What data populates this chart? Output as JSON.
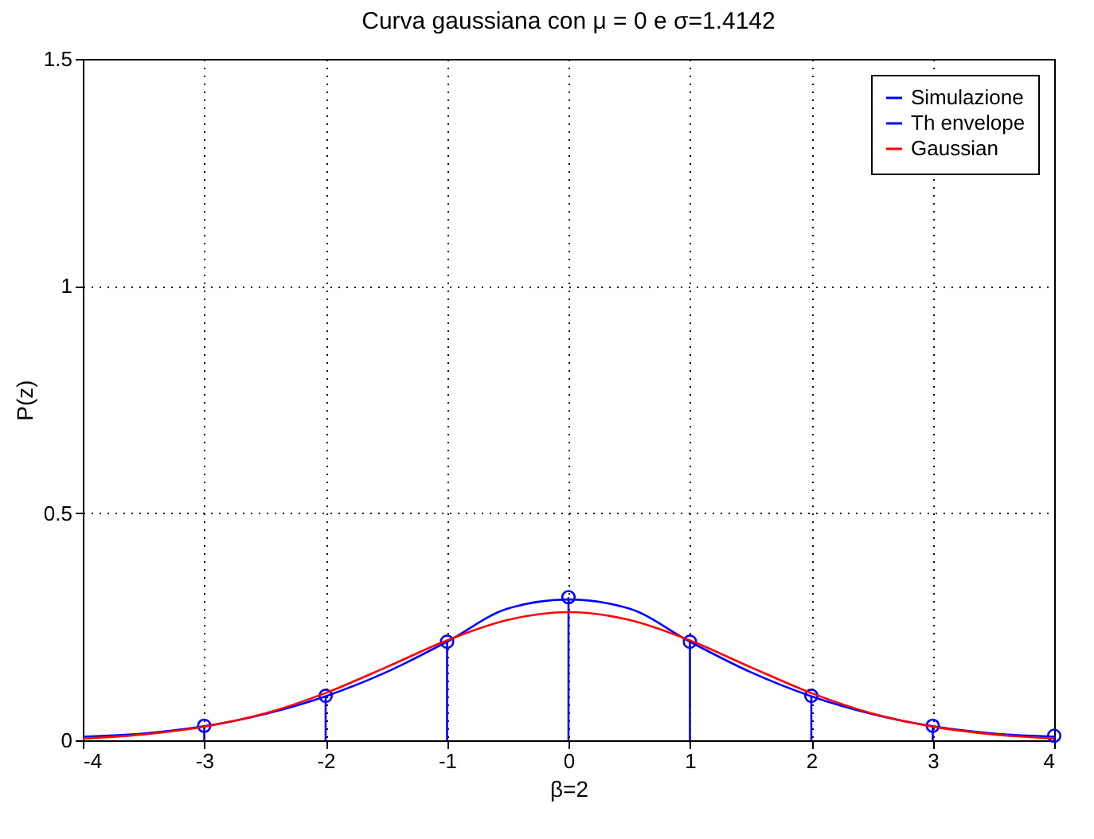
{
  "chart_data": {
    "type": "line",
    "title": "Curva gaussiana con μ = 0 e σ=1.4142",
    "xlabel": "β=2",
    "ylabel": "P(z)",
    "xlim": [
      -4,
      4
    ],
    "xticks": [
      -4,
      -3,
      -2,
      -1,
      0,
      1,
      2,
      3,
      4
    ],
    "ylim": [
      0,
      1.5
    ],
    "yticks": [
      0,
      0.5,
      1,
      1.5
    ],
    "grid": true,
    "legend": "top right",
    "series": [
      {
        "name": "Simulazione",
        "type": "lollipop",
        "marker": "circle",
        "color": "#0000ff",
        "x": [
          -3,
          -2,
          -1,
          0,
          1,
          2,
          3,
          4
        ],
        "values": [
          0.032,
          0.098,
          0.217,
          0.315,
          0.217,
          0.098,
          0.032,
          0.01
        ]
      },
      {
        "name": "Th envelope",
        "type": "line",
        "color": "#0000ff",
        "x": [
          -4,
          -3.5,
          -3,
          -2.5,
          -2,
          -1.5,
          -1,
          -0.5,
          0,
          0.5,
          1,
          1.5,
          2,
          2.5,
          3,
          3.5,
          4
        ],
        "values": [
          0.008,
          0.015,
          0.031,
          0.058,
          0.097,
          0.15,
          0.217,
          0.29,
          0.31,
          0.29,
          0.217,
          0.15,
          0.097,
          0.058,
          0.031,
          0.015,
          0.008
        ]
      },
      {
        "name": "Gaussian",
        "type": "line",
        "color": "#ff0000",
        "x": [
          -4,
          -3.5,
          -3,
          -2.5,
          -2,
          -1.5,
          -1,
          -0.5,
          0,
          0.5,
          1,
          1.5,
          2,
          2.5,
          3,
          3.5,
          4
        ],
        "values": [
          0.004,
          0.013,
          0.03,
          0.059,
          0.104,
          0.161,
          0.22,
          0.265,
          0.282,
          0.265,
          0.22,
          0.161,
          0.104,
          0.059,
          0.03,
          0.013,
          0.004
        ]
      }
    ]
  }
}
